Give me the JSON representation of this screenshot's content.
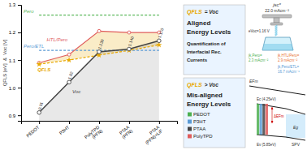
{
  "chart_data": {
    "type": "line",
    "categories": [
      "PEDOT",
      "P3HT",
      "PolyTPD\n(PFN)",
      "PTAA\n(PFN)",
      "PTAA\n(PFN)+LiF"
    ],
    "ylabel": "QFLS [eV]  &  Voc [V]",
    "ylim": [
      0.88,
      1.3
    ],
    "yticks": [
      0.9,
      {
        "value": 1.0,
        "label": "1.0"
      },
      1.1,
      1.2,
      1.3
    ],
    "grid": false,
    "series": [
      {
        "name": "Pero",
        "color": "#5cb85c",
        "line_style": "dashed",
        "marker": "none",
        "values": [
          1.263,
          1.263,
          1.263,
          1.263,
          1.263
        ]
      },
      {
        "name": "Pero/ETL",
        "color": "#5b9bd5",
        "line_style": "dashed",
        "marker": "none",
        "values": [
          1.135,
          1.135,
          1.135,
          1.135,
          1.135
        ]
      },
      {
        "name": "HTL/Pero",
        "color": "#e05c5c",
        "line_style": "solid",
        "marker": "circle",
        "values": [
          1.09,
          1.12,
          1.205,
          1.2,
          1.2
        ]
      },
      {
        "name": "QFLS",
        "color": "#e8a800",
        "line_style": "dashed",
        "marker": "star",
        "values": [
          1.085,
          1.1,
          1.118,
          1.135,
          1.155
        ]
      },
      {
        "name": "Voc",
        "color": "#444444",
        "line_style": "solid",
        "marker": "circle",
        "values": [
          0.91,
          1.02,
          1.13,
          1.14,
          1.17
        ],
        "data_labels": true,
        "value_labels": [
          "0.91",
          "1.02",
          "1.130",
          "1.140",
          "1.170"
        ]
      }
    ],
    "annotations": [
      {
        "text": "QFLS",
        "color": "#e8a800"
      },
      {
        "text": "= Voc"
      },
      {
        "text": "Aligned"
      },
      {
        "text": "Energy Levels"
      },
      {
        "text": "Quantification of"
      },
      {
        "text": "Interfacial Rec."
      },
      {
        "text": "Currents"
      },
      {
        "text": "QFLS",
        "color": "#e8a800"
      },
      {
        "text": "> Voc"
      },
      {
        "text": "Mis-aligned"
      },
      {
        "text": "Energy Levels"
      },
      {
        "text": "PEDOT",
        "color": "#4caf50"
      },
      {
        "text": "P3HT",
        "color": "#5b9bd5"
      },
      {
        "text": "PTAA",
        "color": "#444444"
      },
      {
        "text": "PolyTPD",
        "color": "#e05c5c"
      },
      {
        "text": "jsc*"
      },
      {
        "text": "22.0 mAcm⁻²"
      },
      {
        "text": "eVoc=1.16 V"
      },
      {
        "text": "jk,Pero=",
        "color": "#4caf50"
      },
      {
        "text": "2.3 mAcm⁻²",
        "color": "#4caf50"
      },
      {
        "text": "jk,HTL/Pero=",
        "color": "#e87030"
      },
      {
        "text": "2.9 mAcm⁻²",
        "color": "#e87030"
      },
      {
        "text": "jk,Pero/ETL=",
        "color": "#5b9bd5"
      },
      {
        "text": "16.7 mAcm⁻¹",
        "color": "#5b9bd5"
      },
      {
        "text": "EFm"
      },
      {
        "text": "Ec (4.25eV)"
      },
      {
        "text": "Ev (5.85eV)"
      },
      {
        "text": "Eg"
      },
      {
        "text": "SPV"
      },
      {
        "text": "ΔEFm",
        "color": "#cc0000"
      }
    ]
  }
}
